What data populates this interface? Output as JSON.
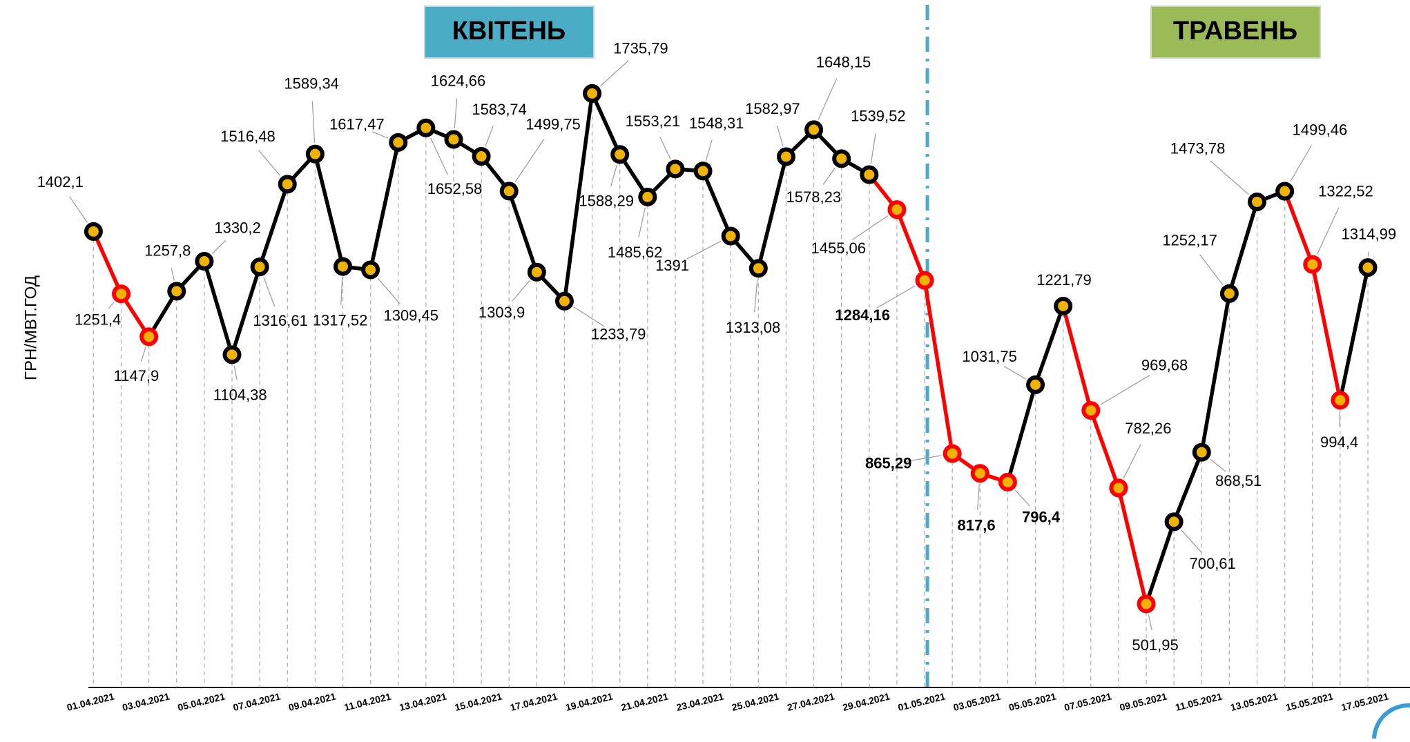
{
  "chart_data": {
    "type": "line",
    "y_label": "ГРН/МВТ.ГОД",
    "annotations": [
      "КВІТЕНЬ",
      "ТРАВЕНЬ"
    ],
    "categories": [
      "01.04.2021",
      null,
      "03.04.2021",
      null,
      "05.04.2021",
      null,
      "07.04.2021",
      null,
      "09.04.2021",
      null,
      "11.04.2021",
      null,
      "13.04.2021",
      null,
      "15.04.2021",
      null,
      "17.04.2021",
      null,
      "19.04.2021",
      null,
      "21.04.2021",
      null,
      "23.04.2021",
      null,
      "25.04.2021",
      null,
      "27.04.2021",
      null,
      "29.04.2021",
      null,
      "01.05.2021",
      null,
      "03.05.2021",
      null,
      "05.05.2021",
      null,
      "07.05.2021",
      null,
      "09.05.2021",
      null,
      "11.05.2021",
      null,
      "13.05.2021",
      null,
      "15.05.2021",
      null,
      "17.05.2021"
    ],
    "values": [
      1402.1,
      1251.4,
      1147.9,
      1257.8,
      1330.2,
      1104.38,
      1316.61,
      1516.48,
      1589.34,
      1317.52,
      1309.45,
      1617.47,
      1652.58,
      1624.66,
      1583.74,
      1499.75,
      1303.9,
      1233.79,
      1735.79,
      1588.29,
      1485.62,
      1553.21,
      1548.31,
      1391,
      1313.08,
      1582.97,
      1648.15,
      1578.23,
      1539.52,
      1455.06,
      1284.16,
      865.29,
      817.6,
      796.4,
      1031.75,
      1221.79,
      969.68,
      782.26,
      501.95,
      700.61,
      868.51,
      1252.17,
      1473.78,
      1499.46,
      1322.52,
      994.4,
      1314.99
    ],
    "value_labels": [
      "1402,1",
      "1251,4",
      "1147,9",
      "1257,8",
      "1330,2",
      "1104,38",
      "1316,61",
      "1516,48",
      "1589,34",
      "1317,52",
      "1309,45",
      "1617,47",
      "1652,58",
      "1624,66",
      "1583,74",
      "1499,75",
      "1303,9",
      "1233,79",
      "1735,79",
      "1588,29",
      "1485,62",
      "1553,21",
      "1548,31",
      "1391",
      "1313,08",
      "1582,97",
      "1648,15",
      "1578,23",
      "1539,52",
      "1455,06",
      "1284,16",
      "865,29",
      "817,6",
      "796,4",
      "1031,75",
      "1221,79",
      "969,68",
      "782,26",
      "501,95",
      "700,61",
      "868,51",
      "1252,17",
      "1473,78",
      "1499,46",
      "1322,52",
      "994,4",
      "1314,99"
    ],
    "highlight": [
      false,
      true,
      true,
      false,
      false,
      false,
      false,
      false,
      false,
      false,
      false,
      false,
      false,
      false,
      false,
      false,
      false,
      false,
      false,
      false,
      false,
      false,
      false,
      false,
      false,
      false,
      false,
      false,
      false,
      true,
      true,
      true,
      true,
      true,
      false,
      false,
      true,
      true,
      true,
      false,
      false,
      false,
      false,
      false,
      true,
      true,
      false
    ],
    "value_label_bold": [
      false,
      false,
      false,
      false,
      false,
      false,
      false,
      false,
      false,
      false,
      false,
      false,
      false,
      false,
      false,
      false,
      false,
      false,
      false,
      false,
      false,
      false,
      false,
      false,
      false,
      false,
      false,
      false,
      false,
      false,
      true,
      true,
      true,
      true,
      false,
      false,
      false,
      false,
      false,
      false,
      false,
      false,
      false,
      false,
      false,
      false,
      false
    ],
    "color": "#000000",
    "highlight_color": "#ff0000",
    "marker_color": "#f0b400",
    "ylim": [
      300,
      1950
    ],
    "grid": true
  }
}
